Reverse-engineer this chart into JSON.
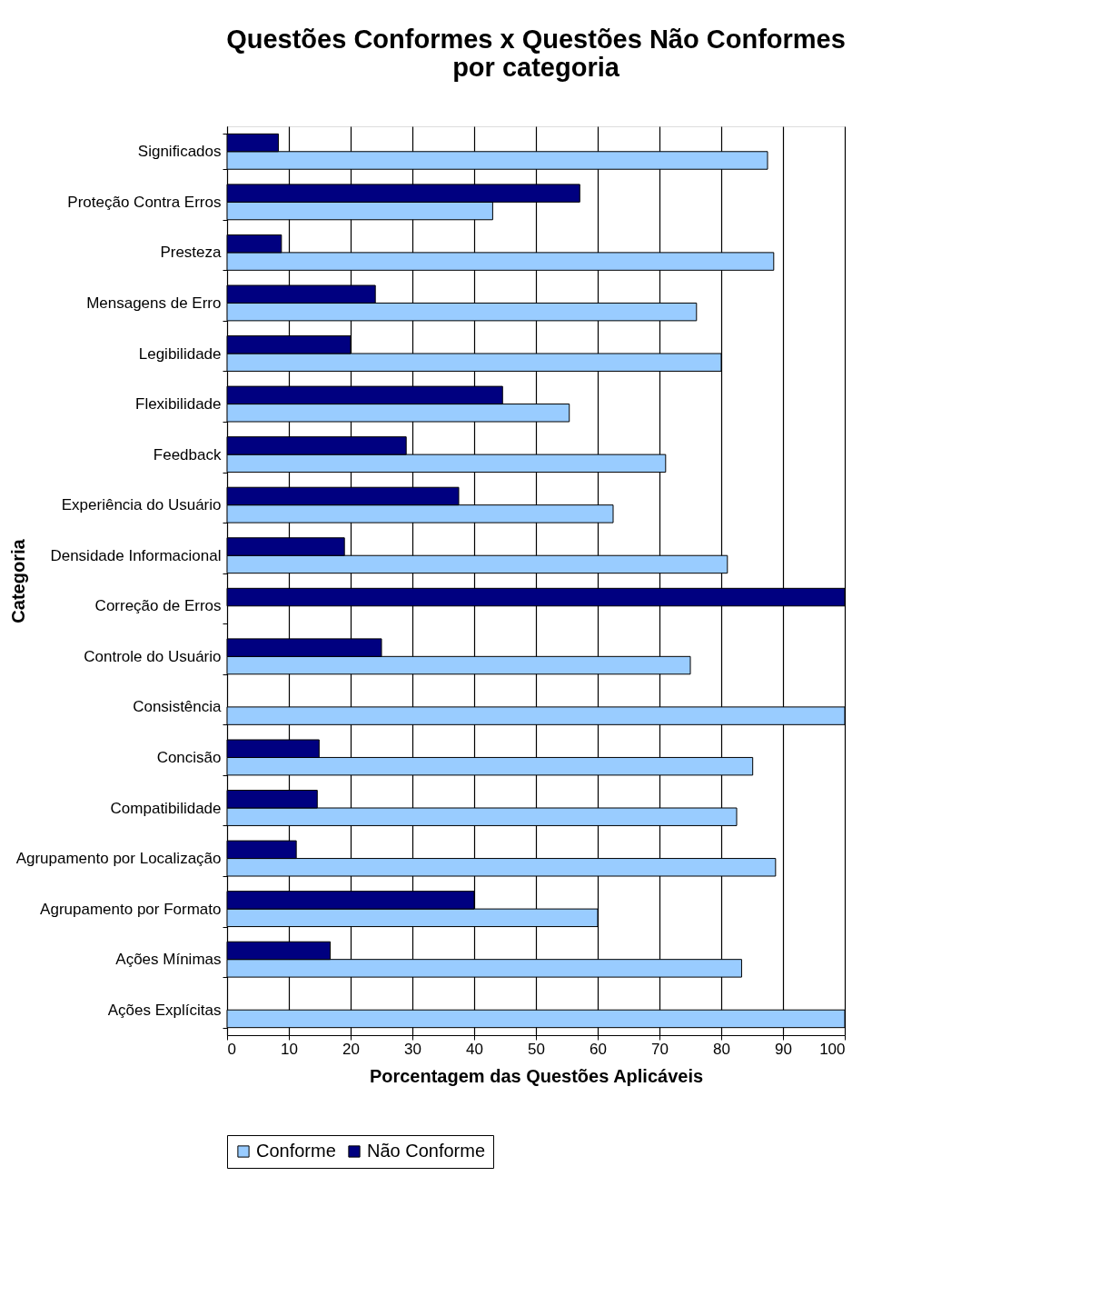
{
  "chart_data": {
    "type": "bar",
    "orientation": "horizontal",
    "title": "Questões Conformes x Questões Não Conformes",
    "subtitle": "por categoria",
    "xlabel": "Porcentagem das Questões Aplicáveis",
    "ylabel": "Categoria",
    "categories": [
      "Significados",
      "Proteção Contra Erros",
      "Presteza",
      "Mensagens de Erro",
      "Legibilidade",
      "Flexibilidade",
      "Feedback",
      "Experiência do Usuário",
      "Densidade Informacional",
      "Correção de Erros",
      "Controle do Usuário",
      "Consistência",
      "Concisão",
      "Compatibilidade",
      "Agrupamento por Localização",
      "Agrupamento por Formato",
      "Ações Mínimas",
      "Ações Explícitas"
    ],
    "series": [
      {
        "name": "Conforme",
        "color": "#99ccff",
        "values": [
          87.5,
          43,
          88.5,
          76,
          80,
          55.4,
          71,
          62.5,
          81,
          0,
          75,
          100,
          85.1,
          82.5,
          88.8,
          60,
          83.3,
          100
        ]
      },
      {
        "name": "Não Conforme",
        "color": "#000080",
        "values": [
          8.3,
          57.1,
          8.8,
          24,
          20,
          44.6,
          29,
          37.5,
          19,
          100,
          25,
          0,
          14.9,
          14.6,
          11.2,
          40,
          16.7,
          0
        ]
      }
    ],
    "xlim": [
      0,
      100
    ],
    "xticks": [
      0,
      10,
      20,
      30,
      40,
      50,
      60,
      70,
      80,
      90,
      100
    ],
    "grid": "x",
    "legend": "bottom"
  }
}
